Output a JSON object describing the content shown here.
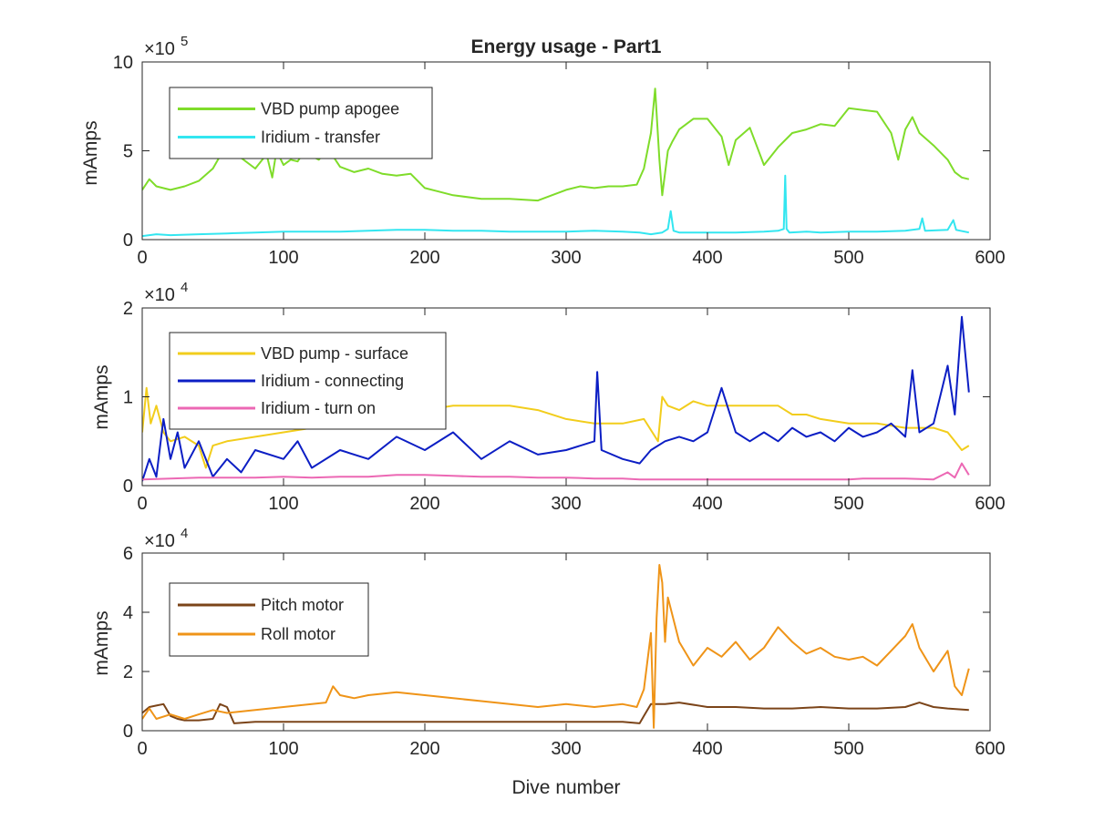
{
  "chart_data": [
    {
      "type": "line",
      "title": "Energy usage - Part1",
      "xlabel": "",
      "ylabel": "mAmps",
      "xlim": [
        0,
        600
      ],
      "ylim": [
        0,
        1000000
      ],
      "exponent_label": "×10",
      "exponent_power": "5",
      "x_ticks": [
        "0",
        "100",
        "200",
        "300",
        "400",
        "500",
        "600"
      ],
      "y_ticks": [
        "0",
        "5",
        "10"
      ],
      "legend_position": "top-left",
      "series": [
        {
          "name": "VBD pump apogee",
          "color": "#7fdc2a",
          "x": [
            0,
            5,
            10,
            20,
            30,
            40,
            50,
            55,
            60,
            65,
            70,
            80,
            88,
            92,
            95,
            100,
            105,
            110,
            115,
            120,
            125,
            130,
            135,
            140,
            150,
            160,
            170,
            180,
            190,
            200,
            210,
            220,
            240,
            260,
            280,
            300,
            310,
            320,
            330,
            340,
            350,
            355,
            360,
            363,
            366,
            368,
            372,
            375,
            380,
            390,
            400,
            410,
            415,
            420,
            430,
            440,
            450,
            460,
            470,
            480,
            490,
            500,
            510,
            520,
            530,
            535,
            540,
            545,
            550,
            560,
            570,
            575,
            580,
            585
          ],
          "y": [
            280000,
            340000,
            300000,
            280000,
            300000,
            330000,
            400000,
            470000,
            500000,
            470000,
            460000,
            400000,
            480000,
            350000,
            500000,
            420000,
            450000,
            440000,
            500000,
            470000,
            450000,
            500000,
            470000,
            410000,
            380000,
            400000,
            370000,
            360000,
            370000,
            290000,
            270000,
            250000,
            230000,
            230000,
            220000,
            280000,
            300000,
            290000,
            300000,
            300000,
            310000,
            400000,
            600000,
            850000,
            450000,
            250000,
            500000,
            550000,
            620000,
            680000,
            680000,
            580000,
            420000,
            560000,
            630000,
            420000,
            520000,
            600000,
            620000,
            650000,
            640000,
            740000,
            730000,
            720000,
            600000,
            450000,
            620000,
            690000,
            600000,
            530000,
            450000,
            380000,
            350000,
            340000
          ]
        },
        {
          "name": "Iridium - transfer",
          "color": "#33e6f0",
          "x": [
            0,
            10,
            20,
            40,
            60,
            80,
            100,
            120,
            140,
            160,
            180,
            200,
            220,
            240,
            260,
            280,
            300,
            320,
            340,
            352,
            360,
            368,
            372,
            374,
            376,
            380,
            400,
            420,
            440,
            450,
            454,
            455,
            456,
            458,
            470,
            480,
            500,
            520,
            540,
            550,
            552,
            554,
            570,
            574,
            576,
            585
          ],
          "y": [
            20000,
            30000,
            25000,
            30000,
            35000,
            40000,
            45000,
            45000,
            45000,
            50000,
            55000,
            55000,
            50000,
            50000,
            45000,
            45000,
            45000,
            50000,
            45000,
            40000,
            30000,
            40000,
            60000,
            160000,
            50000,
            40000,
            40000,
            40000,
            45000,
            50000,
            60000,
            360000,
            60000,
            40000,
            45000,
            40000,
            45000,
            45000,
            50000,
            60000,
            120000,
            50000,
            55000,
            110000,
            55000,
            40000
          ]
        }
      ]
    },
    {
      "type": "line",
      "title": "",
      "xlabel": "",
      "ylabel": "mAmps",
      "xlim": [
        0,
        600
      ],
      "ylim": [
        0,
        20000
      ],
      "exponent_label": "×10",
      "exponent_power": "4",
      "x_ticks": [
        "0",
        "100",
        "200",
        "300",
        "400",
        "500",
        "600"
      ],
      "y_ticks": [
        "0",
        "1",
        "2"
      ],
      "legend_position": "top-left",
      "series": [
        {
          "name": "VBD pump - surface",
          "color": "#f2cd1c",
          "x": [
            0,
            3,
            6,
            10,
            15,
            20,
            30,
            40,
            45,
            50,
            60,
            80,
            100,
            120,
            140,
            160,
            180,
            200,
            220,
            240,
            260,
            280,
            300,
            320,
            340,
            355,
            365,
            368,
            372,
            380,
            390,
            400,
            420,
            440,
            450,
            460,
            470,
            480,
            500,
            520,
            540,
            560,
            570,
            575,
            580,
            585
          ],
          "y": [
            6000,
            11000,
            7000,
            9000,
            6000,
            5000,
            5500,
            4500,
            2000,
            4500,
            5000,
            5500,
            6000,
            6500,
            7000,
            7500,
            8000,
            8500,
            9000,
            9000,
            9000,
            8500,
            7500,
            7000,
            7000,
            7500,
            5000,
            10000,
            9000,
            8500,
            9500,
            9000,
            9000,
            9000,
            9000,
            8000,
            8000,
            7500,
            7000,
            7000,
            6500,
            6500,
            6000,
            5000,
            4000,
            4500
          ]
        },
        {
          "name": "Iridium - connecting",
          "color": "#0c1ec4",
          "x": [
            0,
            5,
            10,
            15,
            20,
            25,
            30,
            40,
            50,
            60,
            70,
            80,
            100,
            110,
            120,
            140,
            160,
            180,
            200,
            220,
            240,
            260,
            280,
            300,
            320,
            322,
            325,
            340,
            352,
            360,
            370,
            380,
            390,
            400,
            410,
            420,
            430,
            440,
            450,
            460,
            470,
            480,
            490,
            500,
            510,
            520,
            530,
            540,
            545,
            550,
            560,
            570,
            575,
            580,
            585
          ],
          "y": [
            500,
            3000,
            1000,
            7500,
            3000,
            6000,
            2000,
            5000,
            1000,
            3000,
            1500,
            4000,
            3000,
            5000,
            2000,
            4000,
            3000,
            5500,
            4000,
            6000,
            3000,
            5000,
            3500,
            4000,
            5000,
            12800,
            4000,
            3000,
            2500,
            4000,
            5000,
            5500,
            5000,
            6000,
            11000,
            6000,
            5000,
            6000,
            5000,
            6500,
            5500,
            6000,
            5000,
            6500,
            5500,
            6000,
            7000,
            5500,
            13000,
            6000,
            7000,
            13500,
            8000,
            19000,
            10500
          ]
        },
        {
          "name": "Iridium - turn on",
          "color": "#ec68b4",
          "x": [
            0,
            20,
            40,
            60,
            80,
            100,
            120,
            140,
            160,
            180,
            200,
            220,
            240,
            260,
            280,
            300,
            320,
            340,
            352,
            360,
            380,
            400,
            420,
            440,
            460,
            480,
            500,
            510,
            520,
            540,
            560,
            570,
            575,
            580,
            585
          ],
          "y": [
            700,
            800,
            900,
            900,
            900,
            1000,
            900,
            1000,
            1000,
            1200,
            1200,
            1100,
            1000,
            1000,
            900,
            900,
            800,
            800,
            700,
            700,
            700,
            700,
            700,
            700,
            700,
            700,
            700,
            800,
            800,
            800,
            700,
            1500,
            900,
            2500,
            1200
          ]
        }
      ]
    },
    {
      "type": "line",
      "title": "",
      "xlabel": "Dive number",
      "ylabel": "mAmps",
      "xlim": [
        0,
        600
      ],
      "ylim": [
        0,
        60000
      ],
      "exponent_label": "×10",
      "exponent_power": "4",
      "x_ticks": [
        "0",
        "100",
        "200",
        "300",
        "400",
        "500",
        "600"
      ],
      "y_ticks": [
        "0",
        "2",
        "4",
        "6"
      ],
      "legend_position": "top-left",
      "series": [
        {
          "name": "Pitch motor",
          "color": "#7b4419",
          "x": [
            0,
            5,
            10,
            15,
            20,
            25,
            30,
            40,
            50,
            55,
            60,
            65,
            80,
            100,
            120,
            140,
            160,
            180,
            200,
            220,
            240,
            260,
            280,
            300,
            320,
            340,
            352,
            355,
            360,
            370,
            380,
            400,
            420,
            440,
            460,
            480,
            500,
            520,
            540,
            550,
            560,
            570,
            585
          ],
          "y": [
            6000,
            8000,
            8500,
            9000,
            5000,
            4000,
            3500,
            3500,
            4000,
            9000,
            8000,
            2500,
            3000,
            3000,
            3000,
            3000,
            3000,
            3000,
            3000,
            3000,
            3000,
            3000,
            3000,
            3000,
            3000,
            3000,
            2500,
            5000,
            9000,
            9000,
            9500,
            8000,
            8000,
            7500,
            7500,
            8000,
            7500,
            7500,
            8000,
            9500,
            8000,
            7500,
            7000
          ]
        },
        {
          "name": "Roll motor",
          "color": "#ef9418",
          "x": [
            0,
            5,
            10,
            20,
            30,
            40,
            50,
            60,
            80,
            100,
            120,
            130,
            135,
            140,
            150,
            160,
            180,
            200,
            220,
            240,
            260,
            280,
            300,
            320,
            340,
            350,
            355,
            360,
            362,
            364,
            366,
            368,
            370,
            372,
            380,
            390,
            400,
            410,
            420,
            430,
            440,
            450,
            460,
            470,
            480,
            490,
            500,
            510,
            520,
            530,
            540,
            545,
            550,
            560,
            570,
            575,
            580,
            585
          ],
          "y": [
            4000,
            7500,
            4000,
            5500,
            4000,
            5500,
            7000,
            6000,
            7000,
            8000,
            9000,
            9500,
            15000,
            12000,
            11000,
            12000,
            13000,
            12000,
            11000,
            10000,
            9000,
            8000,
            9000,
            8000,
            9000,
            8000,
            14000,
            33000,
            1000,
            38000,
            56000,
            50000,
            30000,
            45000,
            30000,
            22000,
            28000,
            25000,
            30000,
            24000,
            28000,
            35000,
            30000,
            26000,
            28000,
            25000,
            24000,
            25000,
            22000,
            27000,
            32000,
            36000,
            28000,
            20000,
            27000,
            15000,
            12000,
            21000
          ]
        }
      ]
    }
  ]
}
